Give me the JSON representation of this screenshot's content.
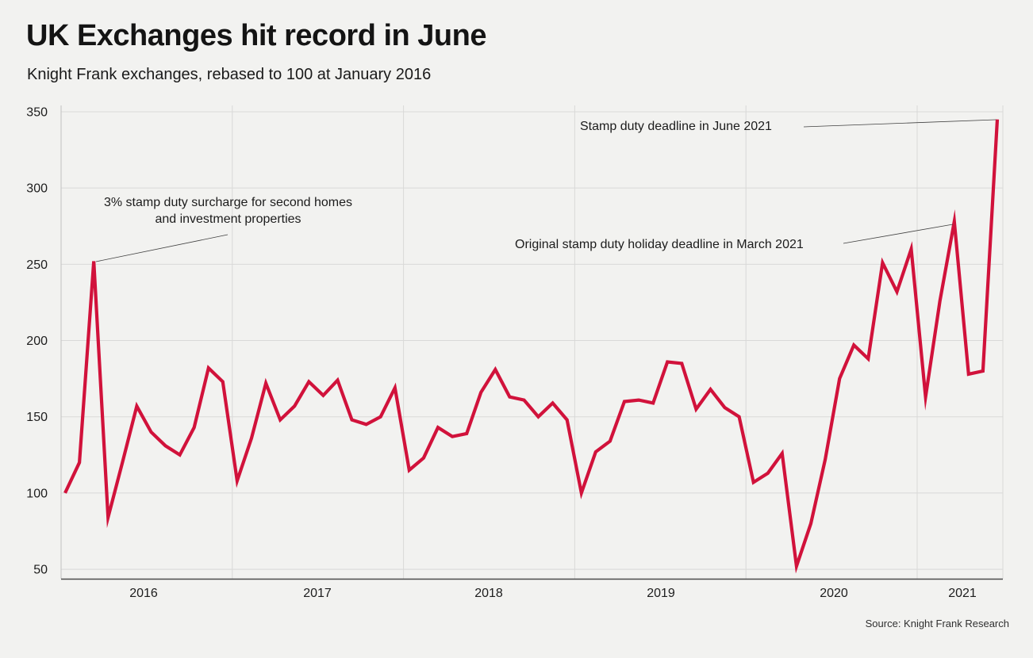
{
  "chart": {
    "title": "UK Exchanges hit record in June",
    "subtitle": "Knight Frank exchanges, rebased to 100 at January 2016",
    "source": "Source: Knight Frank Research"
  },
  "annotations": {
    "surcharge": {
      "line1": "3% stamp duty surcharge for second homes",
      "line2": "and investment properties",
      "target": "March 2016 peak"
    },
    "june_deadline": {
      "text": "Stamp duty deadline in June 2021",
      "target": "June 2021 peak"
    },
    "march_deadline": {
      "text": "Original stamp duty holiday deadline in March 2021",
      "target": "March 2021 peak"
    }
  },
  "chart_data": {
    "type": "line",
    "title": "UK Exchanges hit record in June",
    "subtitle": "Knight Frank exchanges, rebased to 100 at January 2016",
    "frequency": "monthly",
    "start": "2016-01",
    "end": "2021-06",
    "x_tick_labels": [
      "2016",
      "2017",
      "2018",
      "2019",
      "2020",
      "2021"
    ],
    "y_ticks": [
      50,
      100,
      150,
      200,
      250,
      300,
      350
    ],
    "y_tick_labels": [
      "50",
      "100",
      "150",
      "200",
      "250",
      "300",
      "350"
    ],
    "ylim": [
      40,
      358
    ],
    "grid": "horizontal-and-yearly-vertical",
    "line_color": "#d1123b",
    "background_color": "#f2f2f0",
    "series": [
      {
        "name": "Knight Frank exchanges index (Jan 2016 = 100)",
        "values": [
          100,
          120,
          252,
          84,
          120,
          157,
          140,
          131,
          125,
          143,
          182,
          173,
          108,
          136,
          172,
          148,
          157,
          173,
          164,
          174,
          148,
          145,
          150,
          169,
          115,
          123,
          143,
          137,
          139,
          166,
          181,
          163,
          161,
          150,
          159,
          148,
          100,
          127,
          134,
          160,
          161,
          159,
          186,
          185,
          155,
          168,
          156,
          150,
          107,
          113,
          126,
          52,
          80,
          122,
          175,
          197,
          188,
          251,
          232,
          260,
          163,
          226,
          278,
          178,
          180,
          345
        ]
      }
    ]
  }
}
